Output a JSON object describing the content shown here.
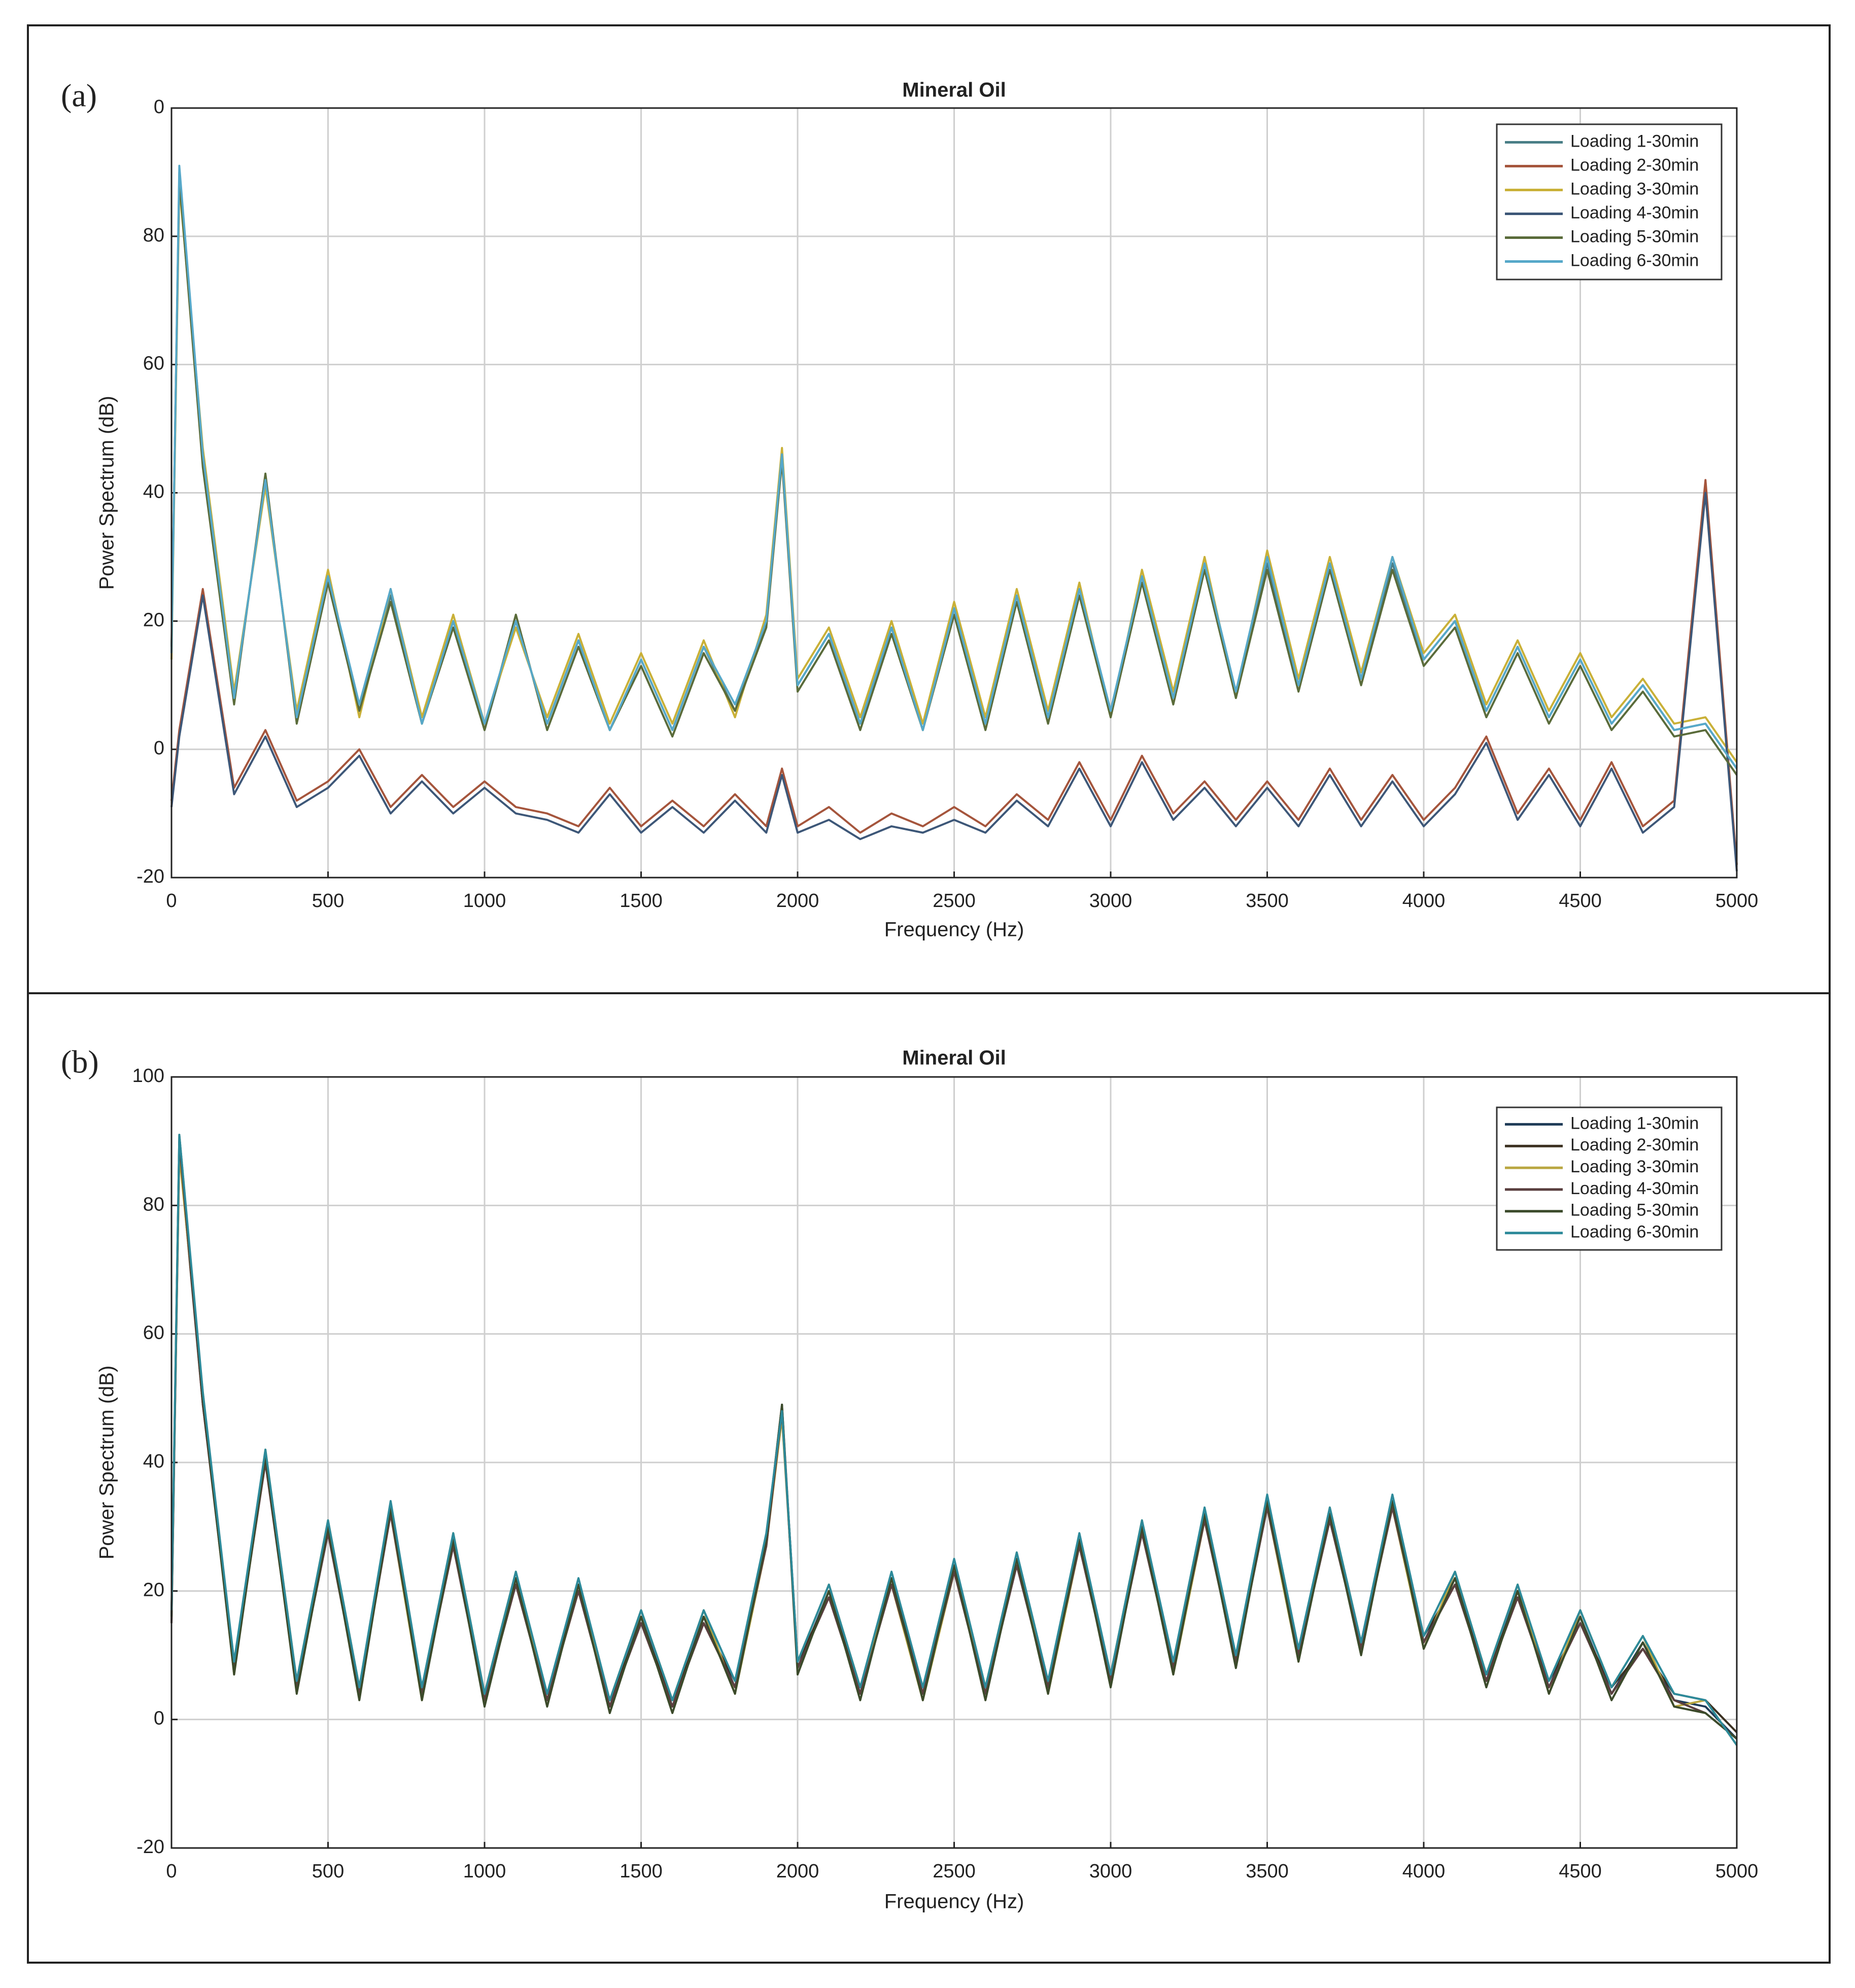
{
  "chart_data": [
    {
      "type": "line",
      "panel_label": "(a)",
      "title": "Mineral Oil",
      "x_label": "Frequency (Hz)",
      "y_label": "Power Spectrum (dB)",
      "xlim": [
        0,
        5000
      ],
      "ylim": [
        -20,
        100
      ],
      "xticks": [
        0,
        500,
        1000,
        1500,
        2000,
        2500,
        3000,
        3500,
        4000,
        4500,
        5000
      ],
      "yticks": [
        -20,
        0,
        20,
        40,
        60,
        80,
        {
          "value": 100,
          "label": "0"
        }
      ],
      "grid": true,
      "legend": "upper right",
      "x": [
        0,
        25,
        100,
        200,
        300,
        400,
        500,
        600,
        700,
        800,
        900,
        1000,
        1100,
        1200,
        1300,
        1400,
        1500,
        1600,
        1700,
        1800,
        1900,
        1950,
        2000,
        2100,
        2200,
        2300,
        2400,
        2500,
        2600,
        2700,
        2800,
        2900,
        3000,
        3100,
        3200,
        3300,
        3400,
        3500,
        3600,
        3700,
        3800,
        3900,
        4000,
        4100,
        4200,
        4300,
        4400,
        4500,
        4600,
        4700,
        4800,
        4900,
        5000
      ],
      "series": [
        {
          "name": "Loading 1-30min",
          "color": "#4a7f87",
          "values": [
            15,
            90,
            45,
            8,
            42,
            5,
            27,
            6,
            24,
            4,
            20,
            3,
            20,
            4,
            17,
            3,
            14,
            3,
            16,
            6,
            20,
            46,
            10,
            18,
            4,
            19,
            3,
            22,
            4,
            24,
            5,
            25,
            6,
            27,
            8,
            29,
            9,
            29,
            10,
            29,
            11,
            29,
            14,
            20,
            6,
            16,
            5,
            14,
            4,
            10,
            3,
            4,
            -3
          ]
        },
        {
          "name": "Loading 2-30min",
          "color": "#a5553c",
          "values": [
            -8,
            3,
            25,
            -6,
            3,
            -8,
            -5,
            0,
            -9,
            -4,
            -9,
            -5,
            -9,
            -10,
            -12,
            -6,
            -12,
            -8,
            -12,
            -7,
            -12,
            -3,
            -12,
            -9,
            -13,
            -10,
            -12,
            -9,
            -12,
            -7,
            -11,
            -2,
            -11,
            -1,
            -10,
            -5,
            -11,
            -5,
            -11,
            -3,
            -11,
            -4,
            -11,
            -6,
            2,
            -10,
            -3,
            -11,
            -2,
            -12,
            -8,
            42,
            -18
          ]
        },
        {
          "name": "Loading 3-30min",
          "color": "#c9b037",
          "values": [
            14,
            88,
            47,
            9,
            41,
            6,
            28,
            5,
            25,
            5,
            21,
            4,
            19,
            5,
            18,
            4,
            15,
            4,
            17,
            5,
            21,
            47,
            11,
            19,
            5,
            20,
            4,
            23,
            5,
            25,
            6,
            26,
            5,
            28,
            9,
            30,
            8,
            31,
            11,
            30,
            12,
            30,
            15,
            21,
            7,
            17,
            6,
            15,
            5,
            11,
            4,
            5,
            -2
          ]
        },
        {
          "name": "Loading 4-30min",
          "color": "#3d5778",
          "values": [
            -9,
            2,
            24,
            -7,
            2,
            -9,
            -6,
            -1,
            -10,
            -5,
            -10,
            -6,
            -10,
            -11,
            -13,
            -7,
            -13,
            -9,
            -13,
            -8,
            -13,
            -4,
            -13,
            -11,
            -14,
            -12,
            -13,
            -11,
            -13,
            -8,
            -12,
            -3,
            -12,
            -2,
            -11,
            -6,
            -12,
            -6,
            -12,
            -4,
            -12,
            -5,
            -12,
            -7,
            1,
            -11,
            -4,
            -12,
            -3,
            -13,
            -9,
            40,
            -19
          ]
        },
        {
          "name": "Loading 5-30min",
          "color": "#5a6b3a",
          "values": [
            16,
            89,
            44,
            7,
            43,
            4,
            26,
            6,
            23,
            4,
            19,
            3,
            21,
            3,
            16,
            3,
            13,
            2,
            15,
            6,
            19,
            45,
            9,
            17,
            3,
            18,
            3,
            21,
            3,
            23,
            4,
            24,
            5,
            26,
            7,
            28,
            8,
            28,
            9,
            28,
            10,
            28,
            13,
            19,
            5,
            15,
            4,
            13,
            3,
            9,
            2,
            3,
            -4
          ]
        },
        {
          "name": "Loading 6-30min",
          "color": "#56a8c9",
          "values": [
            15,
            91,
            46,
            8,
            42,
            5,
            27,
            7,
            25,
            4,
            20,
            4,
            20,
            4,
            17,
            3,
            14,
            3,
            16,
            7,
            20,
            46,
            10,
            18,
            4,
            19,
            3,
            22,
            4,
            24,
            5,
            25,
            6,
            27,
            8,
            29,
            9,
            30,
            10,
            29,
            11,
            30,
            14,
            20,
            6,
            16,
            5,
            14,
            4,
            10,
            3,
            4,
            -3
          ]
        }
      ]
    },
    {
      "type": "line",
      "panel_label": "(b)",
      "title": "Mineral Oil",
      "x_label": "Frequency (Hz)",
      "y_label": "Power Spectrum (dB)",
      "xlim": [
        0,
        5000
      ],
      "ylim": [
        -20,
        100
      ],
      "xticks": [
        0,
        500,
        1000,
        1500,
        2000,
        2500,
        3000,
        3500,
        4000,
        4500,
        5000
      ],
      "yticks": [
        -20,
        0,
        20,
        40,
        60,
        80,
        100
      ],
      "grid": true,
      "legend": "upper right",
      "x": [
        0,
        25,
        100,
        200,
        300,
        400,
        500,
        600,
        700,
        800,
        900,
        1000,
        1100,
        1200,
        1300,
        1400,
        1500,
        1600,
        1700,
        1800,
        1900,
        1950,
        2000,
        2100,
        2200,
        2300,
        2400,
        2500,
        2600,
        2700,
        2800,
        2900,
        3000,
        3100,
        3200,
        3300,
        3400,
        3500,
        3600,
        3700,
        3800,
        3900,
        4000,
        4100,
        4200,
        4300,
        4400,
        4500,
        4600,
        4700,
        4800,
        4900,
        5000
      ],
      "series": [
        {
          "name": "Loading 1-30min",
          "color": "#1f3b57",
          "values": [
            16,
            90,
            50,
            8,
            41,
            5,
            30,
            4,
            33,
            4,
            28,
            3,
            22,
            3,
            21,
            2,
            16,
            2,
            16,
            5,
            28,
            49,
            8,
            20,
            4,
            22,
            4,
            24,
            4,
            25,
            5,
            28,
            6,
            30,
            8,
            32,
            9,
            34,
            10,
            32,
            11,
            34,
            12,
            22,
            6,
            20,
            5,
            16,
            4,
            12,
            3,
            2,
            -3
          ]
        },
        {
          "name": "Loading 2-30min",
          "color": "#3a3020",
          "values": [
            15,
            89,
            49,
            9,
            40,
            6,
            29,
            5,
            32,
            5,
            27,
            4,
            21,
            4,
            20,
            3,
            15,
            3,
            15,
            6,
            27,
            48,
            9,
            19,
            5,
            21,
            5,
            23,
            5,
            24,
            6,
            27,
            7,
            29,
            9,
            31,
            10,
            33,
            11,
            31,
            12,
            33,
            13,
            21,
            7,
            19,
            6,
            15,
            5,
            11,
            4,
            3,
            -2
          ]
        },
        {
          "name": "Loading 3-30min",
          "color": "#b9a640",
          "values": [
            17,
            88,
            51,
            7,
            42,
            6,
            31,
            5,
            32,
            3,
            29,
            4,
            23,
            3,
            20,
            3,
            17,
            3,
            17,
            4,
            27,
            47,
            9,
            21,
            5,
            21,
            3,
            23,
            5,
            26,
            4,
            27,
            7,
            31,
            7,
            31,
            10,
            33,
            9,
            33,
            12,
            33,
            11,
            23,
            7,
            21,
            4,
            17,
            5,
            13,
            2,
            3,
            -4
          ]
        },
        {
          "name": "Loading 4-30min",
          "color": "#5a3f3f",
          "values": [
            15,
            90,
            49,
            8,
            40,
            5,
            29,
            4,
            32,
            4,
            27,
            3,
            21,
            3,
            20,
            2,
            15,
            2,
            15,
            5,
            27,
            48,
            8,
            19,
            4,
            21,
            4,
            23,
            4,
            24,
            5,
            27,
            6,
            29,
            8,
            31,
            9,
            33,
            10,
            31,
            11,
            33,
            12,
            21,
            6,
            19,
            5,
            15,
            4,
            11,
            3,
            1,
            -3
          ]
        },
        {
          "name": "Loading 5-30min",
          "color": "#3b4a2a",
          "values": [
            16,
            91,
            50,
            7,
            41,
            4,
            30,
            3,
            33,
            3,
            28,
            2,
            22,
            2,
            21,
            1,
            16,
            1,
            16,
            4,
            28,
            49,
            7,
            20,
            3,
            22,
            3,
            24,
            3,
            25,
            4,
            28,
            5,
            30,
            7,
            32,
            8,
            34,
            9,
            32,
            10,
            34,
            11,
            22,
            5,
            20,
            4,
            16,
            3,
            12,
            2,
            1,
            -3
          ]
        },
        {
          "name": "Loading 6-30min",
          "color": "#2d8a9a",
          "values": [
            17,
            91,
            51,
            9,
            42,
            6,
            31,
            5,
            34,
            5,
            29,
            4,
            23,
            4,
            22,
            3,
            17,
            3,
            17,
            6,
            29,
            48,
            9,
            21,
            5,
            23,
            5,
            25,
            5,
            26,
            6,
            29,
            7,
            31,
            9,
            33,
            10,
            35,
            11,
            33,
            12,
            35,
            13,
            23,
            7,
            21,
            6,
            17,
            5,
            13,
            4,
            3,
            -4
          ]
        }
      ]
    }
  ]
}
